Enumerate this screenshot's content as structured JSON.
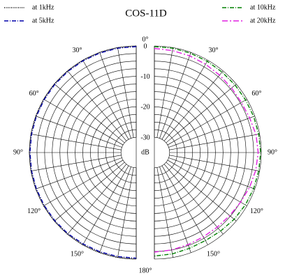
{
  "chart_data": {
    "type": "polar",
    "title": "COS-11D",
    "theta": [
      0,
      10,
      20,
      30,
      40,
      50,
      60,
      70,
      80,
      90,
      100,
      110,
      120,
      130,
      140,
      150,
      160,
      170,
      180
    ],
    "series": [
      {
        "name": "at 1kHz",
        "color": "#000000",
        "side": "left",
        "dash": "1,1.5",
        "values": [
          0,
          0,
          0,
          0,
          0,
          0,
          0,
          0,
          0,
          0,
          0,
          0,
          0,
          0,
          0,
          0,
          0,
          0,
          0
        ]
      },
      {
        "name": "at 5kHz",
        "color": "#0000aa",
        "side": "left",
        "dash": "6,2,1,2",
        "values": [
          -0.2,
          -0.2,
          -0.2,
          -0.2,
          -0.2,
          -0.2,
          -0.2,
          -0.2,
          -0.2,
          -0.2,
          -0.2,
          -0.2,
          -0.2,
          -0.2,
          -0.2,
          -0.3,
          -0.3,
          -0.3,
          -0.3
        ]
      },
      {
        "name": "at 10kHz",
        "color": "#008000",
        "side": "right",
        "dash": "6,2,1,2",
        "values": [
          -0.2,
          -0.2,
          -0.3,
          -0.4,
          -0.5,
          -0.5,
          -0.5,
          -0.4,
          -0.3,
          -0.2,
          -0.3,
          -0.4,
          -0.6,
          -0.9,
          -1.3,
          -1.6,
          -1.5,
          -1.2,
          -1
        ]
      },
      {
        "name": "at 20kHz",
        "color": "#e020e0",
        "side": "right",
        "dash": "8,3,2,3",
        "values": [
          -0.8,
          -1,
          -1.2,
          -1.5,
          -1.8,
          -2,
          -2.1,
          -1.8,
          -1.2,
          -1,
          -1.3,
          -1.8,
          -2.4,
          -2.8,
          -3,
          -3,
          -2.8,
          -2.5,
          -2.3
        ]
      }
    ],
    "rlim": [
      -35,
      0
    ],
    "rticks": [
      0,
      -10,
      -20,
      -30
    ],
    "rgrid": [
      -30,
      -27.5,
      -25,
      -22.5,
      -20,
      -17.5,
      -15,
      -12.5,
      -10,
      -7.5,
      -5,
      -2.5,
      0
    ],
    "thetagrid": [
      0,
      10,
      20,
      30,
      40,
      50,
      60,
      70,
      80,
      90,
      100,
      110,
      120,
      130,
      140,
      150,
      160,
      170,
      180
    ],
    "thetaticks": [
      {
        "value": 0,
        "label": "0°"
      },
      {
        "value": 30,
        "label": "30°"
      },
      {
        "value": 60,
        "label": "60°"
      },
      {
        "value": 90,
        "label": "90°"
      },
      {
        "value": 120,
        "label": "120°"
      },
      {
        "value": 150,
        "label": "150°"
      },
      {
        "value": 180,
        "label": "180°"
      }
    ],
    "rlabel": "dB"
  }
}
